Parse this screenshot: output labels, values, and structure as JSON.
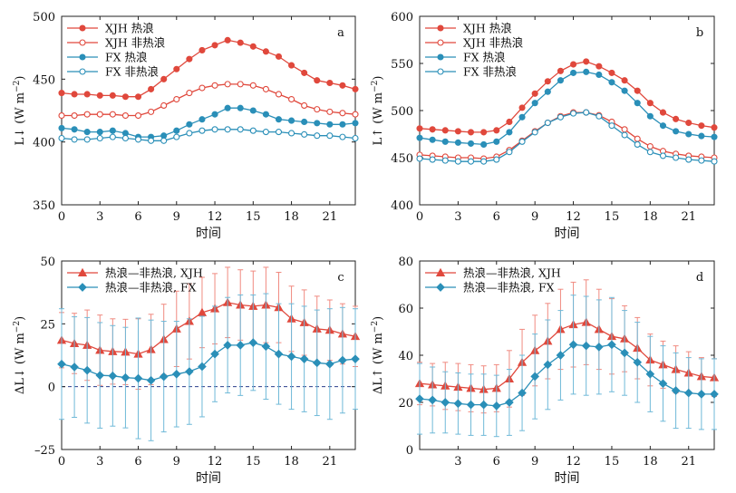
{
  "colors": {
    "xjh": "#e0483c",
    "fx": "#2a8fb8",
    "err_xjh": "#f08a80",
    "err_fx": "#6fb9d8",
    "zero": "#2b3f8c"
  },
  "chart_data": [
    {
      "panel": "a",
      "type": "line",
      "xlabel": "时间",
      "ylabel": "L↓ (W m⁻²)",
      "xlim": [
        0,
        23
      ],
      "ylim": [
        350,
        500
      ],
      "xticks": [
        0,
        3,
        6,
        9,
        12,
        15,
        18,
        21
      ],
      "yticks": [
        350,
        400,
        450,
        500
      ],
      "legend": "top-left",
      "series": [
        {
          "name": "XJH 热浪",
          "style": "filled",
          "color": "xjh",
          "values": [
            439,
            438,
            438,
            437,
            437,
            436,
            436,
            442,
            450,
            458,
            466,
            473,
            477,
            481,
            479,
            476,
            472,
            468,
            461,
            455,
            449,
            447,
            445,
            442
          ]
        },
        {
          "name": "XJH 非热浪",
          "style": "open",
          "color": "xjh",
          "values": [
            421,
            421,
            422,
            422,
            422,
            421,
            421,
            424,
            429,
            434,
            439,
            443,
            445,
            446,
            446,
            445,
            442,
            438,
            434,
            429,
            426,
            424,
            423,
            422
          ]
        },
        {
          "name": "FX 热浪",
          "style": "filled",
          "color": "fx",
          "values": [
            411,
            410,
            408,
            408,
            409,
            407,
            404,
            404,
            405,
            409,
            414,
            418,
            422,
            427,
            427,
            425,
            422,
            418,
            417,
            416,
            415,
            414,
            414,
            415
          ]
        },
        {
          "name": "FX 非热浪",
          "style": "open",
          "color": "fx",
          "values": [
            403,
            402,
            402,
            403,
            404,
            403,
            402,
            401,
            401,
            404,
            407,
            409,
            410,
            410,
            410,
            409,
            408,
            408,
            407,
            406,
            405,
            405,
            404,
            403
          ]
        }
      ]
    },
    {
      "panel": "b",
      "type": "line",
      "xlabel": "时间",
      "ylabel": "L↑ (W m⁻²)",
      "xlim": [
        0,
        23
      ],
      "ylim": [
        400,
        600
      ],
      "xticks": [
        0,
        3,
        6,
        9,
        12,
        15,
        18,
        21
      ],
      "yticks": [
        400,
        450,
        500,
        550,
        600
      ],
      "legend": "top-left",
      "series": [
        {
          "name": "XJH 热浪",
          "style": "filled",
          "color": "xjh",
          "values": [
            481,
            480,
            479,
            478,
            477,
            477,
            479,
            488,
            503,
            518,
            531,
            542,
            549,
            552,
            547,
            540,
            532,
            521,
            508,
            498,
            491,
            487,
            484,
            482
          ]
        },
        {
          "name": "XJH 非热浪",
          "style": "open",
          "color": "xjh",
          "values": [
            453,
            452,
            451,
            450,
            450,
            449,
            451,
            458,
            468,
            478,
            487,
            494,
            498,
            498,
            495,
            488,
            480,
            470,
            462,
            457,
            454,
            452,
            451,
            450
          ]
        },
        {
          "name": "FX 热浪",
          "style": "filled",
          "color": "fx",
          "values": [
            471,
            469,
            467,
            466,
            465,
            464,
            467,
            477,
            493,
            508,
            520,
            532,
            540,
            541,
            538,
            530,
            521,
            508,
            494,
            484,
            478,
            475,
            473,
            472
          ]
        },
        {
          "name": "FX 非热浪",
          "style": "open",
          "color": "fx",
          "values": [
            449,
            448,
            447,
            446,
            446,
            446,
            448,
            456,
            467,
            477,
            487,
            493,
            497,
            498,
            494,
            484,
            474,
            464,
            456,
            452,
            450,
            448,
            447,
            446
          ]
        }
      ]
    },
    {
      "panel": "c",
      "type": "line",
      "xlabel": "时间",
      "ylabel": "ΔL↓ (W m⁻²)",
      "xlim": [
        0,
        23
      ],
      "ylim": [
        -25,
        50
      ],
      "xticks": [
        0,
        3,
        6,
        9,
        12,
        15,
        18,
        21
      ],
      "yticks": [
        -25,
        0,
        25,
        50
      ],
      "ytick_labels": [
        "–25",
        "0",
        "25",
        "50"
      ],
      "zero_line": true,
      "legend": "top-left",
      "series": [
        {
          "name": "热浪—非热浪, XJH",
          "marker": "triangle",
          "color": "xjh",
          "values": [
            18.5,
            17.2,
            16.5,
            14.5,
            14,
            13.8,
            13,
            14.8,
            18.8,
            23,
            26,
            29.5,
            31,
            33.5,
            32.5,
            32,
            32.5,
            31.5,
            27,
            25.5,
            23,
            22.5,
            21,
            20
          ],
          "err": [
            11,
            12,
            14,
            14,
            13,
            13,
            14,
            14,
            14,
            15,
            15,
            14,
            14,
            14,
            14,
            14,
            15,
            14,
            13,
            13,
            13,
            12,
            12,
            12
          ]
        },
        {
          "name": "热浪—非热浪, FX",
          "marker": "diamond",
          "color": "fx",
          "values": [
            9,
            7.8,
            6.5,
            4.5,
            4.3,
            3.6,
            3.3,
            2.5,
            4,
            5,
            6,
            8,
            13,
            16.5,
            16.5,
            17.5,
            16,
            13,
            12,
            11,
            9.5,
            9,
            10.5,
            11
          ],
          "err": [
            22,
            20,
            21,
            21,
            20,
            20,
            24,
            24,
            22,
            21,
            21,
            20,
            19,
            19,
            20,
            19,
            21,
            20,
            21,
            21,
            21,
            22,
            21,
            20
          ]
        }
      ]
    },
    {
      "panel": "d",
      "type": "line",
      "xlabel": "时间",
      "ylabel": "ΔL↑ (W m⁻²)",
      "xlim": [
        0,
        23
      ],
      "ylim": [
        0,
        80
      ],
      "xticks": [
        3,
        6,
        9,
        12,
        15,
        18,
        21
      ],
      "yticks": [
        0,
        20,
        40,
        60,
        80
      ],
      "legend": "top-left",
      "series": [
        {
          "name": "热浪—非热浪, XJH",
          "marker": "triangle",
          "color": "xjh",
          "values": [
            28,
            27.5,
            27,
            26.5,
            26,
            25.5,
            26,
            30,
            37,
            42,
            46,
            51,
            53,
            54,
            51,
            48,
            47,
            43,
            38,
            36,
            34,
            32.5,
            31,
            30.5
          ],
          "err": [
            9,
            9,
            10,
            10,
            10,
            10,
            10,
            12,
            14,
            15,
            16,
            17,
            18,
            18,
            17,
            16,
            14,
            13,
            11,
            10,
            10,
            9,
            8,
            8
          ]
        },
        {
          "name": "热浪—非热浪, FX",
          "marker": "diamond",
          "color": "fx",
          "values": [
            21.5,
            21,
            20,
            19.5,
            19,
            19,
            18.5,
            20,
            24,
            31,
            36,
            40,
            44.5,
            44,
            43.5,
            44.5,
            41,
            37,
            32,
            28,
            25,
            24,
            23.5,
            23.5
          ],
          "err": [
            15,
            14,
            13,
            13,
            13,
            13,
            13,
            14,
            16,
            18,
            19,
            19,
            21,
            21,
            20,
            20,
            18,
            17,
            16,
            16,
            16,
            15,
            15,
            15
          ]
        }
      ]
    }
  ]
}
